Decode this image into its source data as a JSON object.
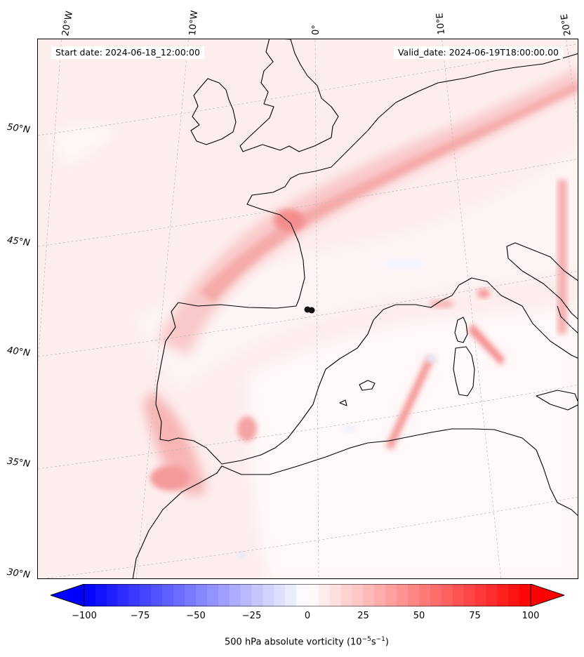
{
  "header": {
    "start_date": "Start date: 2024-06-18_12:00:00",
    "valid_date": "Valid_date: 2024-06-19T18:00:00.00"
  },
  "map": {
    "field": "500 hPa absolute vorticity",
    "longitude_labels": [
      "20°W",
      "10°W",
      "0°",
      "10°E",
      "20°E"
    ],
    "latitude_labels": [
      "50°N",
      "45°N",
      "40°N",
      "35°N",
      "30°N"
    ],
    "gridlines": true,
    "coastlines": true
  },
  "colorbar": {
    "label": "500 hPa absolute vorticity (10",
    "label_exp1": "−5",
    "label_mid": "s",
    "label_exp2": "−1",
    "label_end": ")",
    "ticks": [
      "−100",
      "−75",
      "−50",
      "−25",
      "0",
      "25",
      "50",
      "75",
      "100"
    ],
    "min": -100,
    "max": 100,
    "levels": 41,
    "colormap": "bwr",
    "extend": "both",
    "colors": {
      "negative": "#0000ff",
      "neutral": "#ffffff",
      "positive": "#ff0000"
    }
  }
}
